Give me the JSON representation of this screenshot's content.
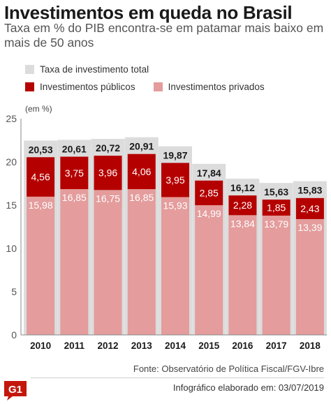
{
  "header": {
    "title": "Investimentos em queda no Brasil",
    "subtitle": "Taxa em % do PIB encontra-se em patamar mais baixo em mais de 50 anos"
  },
  "legend": {
    "total": "Taxa de investimento total",
    "public": "Investimentos públicos",
    "private": "Investimentos privados"
  },
  "colors": {
    "total": "#dcdcdc",
    "public": "#b50000",
    "private": "#e49c9c",
    "label_total_bg": "#dcdcdc",
    "axis": "#888888",
    "logo": "#c4170c"
  },
  "chart_data": {
    "type": "bar",
    "stacked": true,
    "unit_label": "(em %)",
    "categories": [
      "2010",
      "2011",
      "2012",
      "2013",
      "2014",
      "2015",
      "2016",
      "2017",
      "2018"
    ],
    "series": [
      {
        "name": "Investimentos privados",
        "values": [
          15.98,
          16.85,
          16.75,
          16.85,
          15.93,
          14.99,
          13.84,
          13.79,
          13.39
        ]
      },
      {
        "name": "Investimentos públicos",
        "values": [
          4.56,
          3.75,
          3.96,
          4.06,
          3.95,
          2.85,
          2.28,
          1.85,
          2.43
        ]
      }
    ],
    "totals": {
      "name": "Taxa de investimento total",
      "values": [
        20.53,
        20.61,
        20.72,
        20.91,
        19.87,
        17.84,
        16.12,
        15.63,
        15.83
      ]
    },
    "ylim": [
      0,
      25
    ],
    "yticks": [
      0,
      5,
      10,
      15,
      20,
      25
    ],
    "grid": false,
    "legend_position": "top-left"
  },
  "footer": {
    "source": "Fonte: Observatório de Política Fiscal/FGV-Ibre",
    "credit": "Infográfico elaborado em: 03/07/2019",
    "logo_text": "G1"
  }
}
